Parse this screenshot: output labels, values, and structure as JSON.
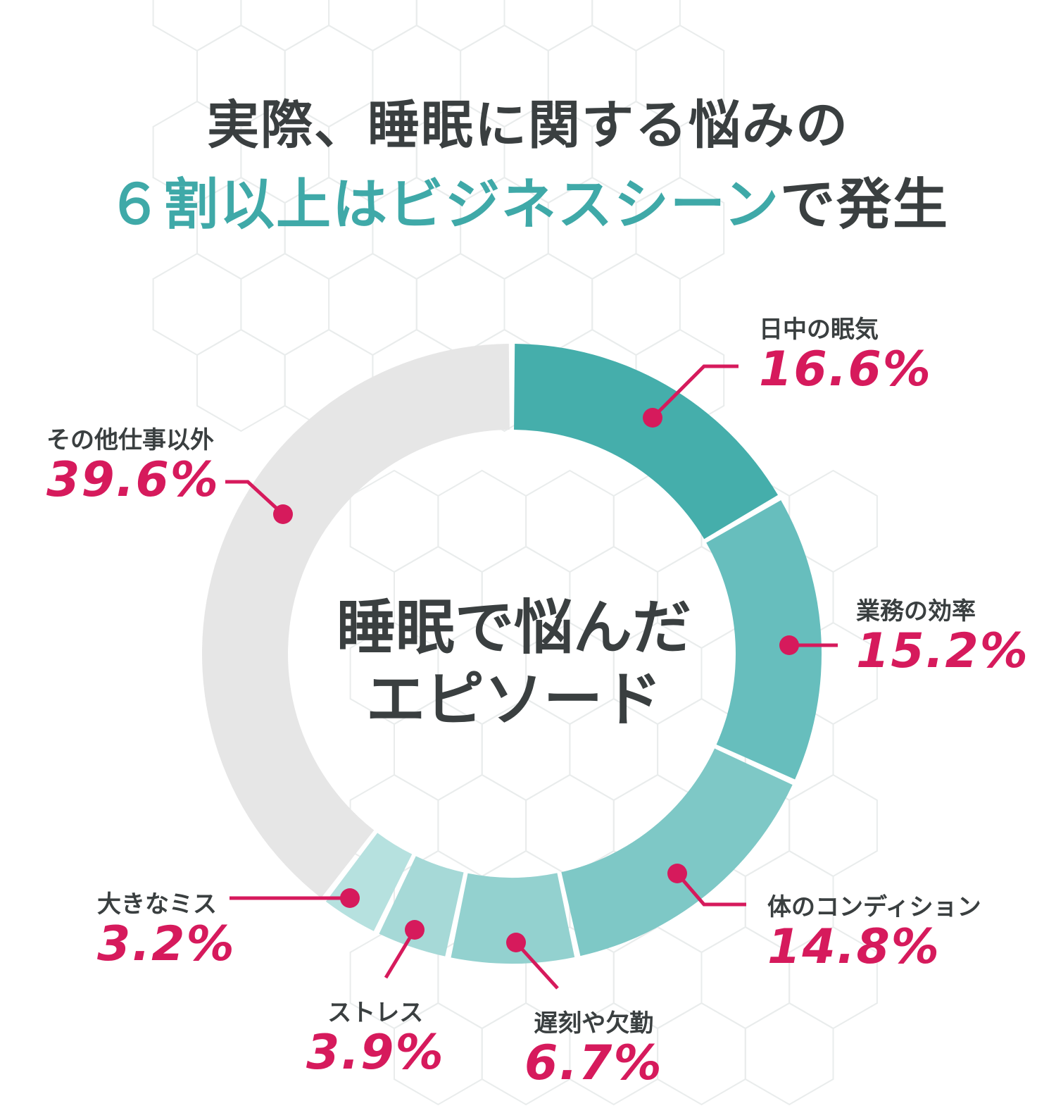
{
  "title": {
    "line1": "実際、睡眠に関する悩みの",
    "line2_highlight": "６割以上はビジネスシーン",
    "line2_rest": "で発生"
  },
  "center_label": {
    "line1": "睡眠で悩んだ",
    "line2": "エピソード"
  },
  "colors": {
    "text": "#3a3f40",
    "accent_teal": "#3fa9a8",
    "percent": "#d61a5c",
    "other": "#e6e6e6"
  },
  "chart_data": {
    "type": "pie",
    "categories": [
      "日中の眠気",
      "業務の効率",
      "体のコンディション",
      "遅刻や欠勤",
      "ストレス",
      "大きなミス",
      "その他仕事以外"
    ],
    "values": [
      16.6,
      15.2,
      14.8,
      6.7,
      3.9,
      3.2,
      39.6
    ],
    "value_labels": [
      "16.6%",
      "15.2%",
      "14.8%",
      "6.7%",
      "3.9%",
      "3.2%",
      "39.6%"
    ],
    "colors": [
      "#45aeab",
      "#67bebd",
      "#7ec8c6",
      "#93d1cf",
      "#a6d9d7",
      "#b6e1df",
      "#e6e6e6"
    ],
    "unit": "%",
    "start_angle": "top",
    "direction": "clockwise",
    "donut": true
  }
}
